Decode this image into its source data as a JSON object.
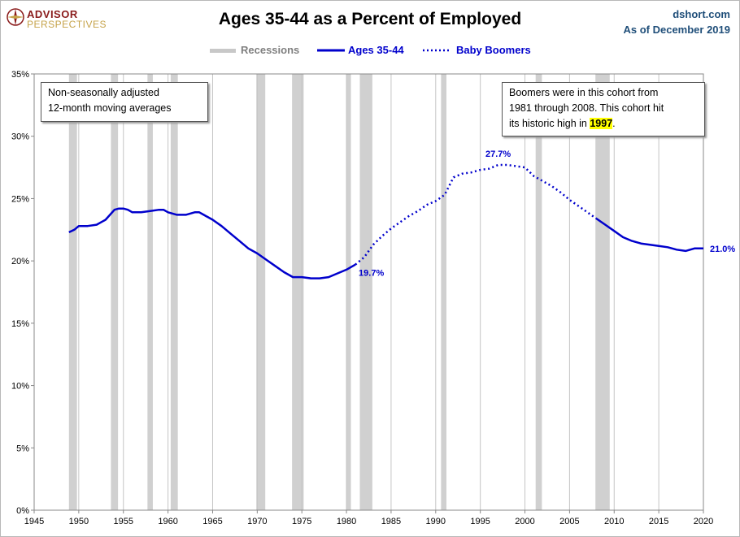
{
  "header": {
    "title": "Ages 35-44 as a Percent of Employed",
    "logo_top": "ADVISOR",
    "logo_bottom": "PERSPECTIVES",
    "source_site": "dshort.com",
    "source_date": "As of December 2019"
  },
  "notes": {
    "left_line1": "Non-seasonally adjusted",
    "left_line2": "12-month moving averages",
    "right_line1": "Boomers were in this cohort from",
    "right_line2": "1981  through 2008.  This cohort hit",
    "right_line3_pre": "its historic high in ",
    "right_line3_year": "1997",
    "right_line3_post": "."
  },
  "chart_data": {
    "type": "line",
    "title": "Ages 35-44 as a Percent of Employed",
    "xlabel": "",
    "ylabel": "",
    "xlim": [
      1945,
      2020
    ],
    "ylim": [
      0,
      35
    ],
    "x_ticks": [
      "1945",
      "1950",
      "1955",
      "1960",
      "1965",
      "1970",
      "1975",
      "1980",
      "1985",
      "1990",
      "1995",
      "2000",
      "2005",
      "2010",
      "2015",
      "2020"
    ],
    "y_ticks": [
      "0%",
      "5%",
      "10%",
      "15%",
      "20%",
      "25%",
      "30%",
      "35%"
    ],
    "grid": "vertical",
    "legend": {
      "position": "top",
      "items": [
        {
          "label": "Recessions",
          "color": "#c8c8c8",
          "style": "band"
        },
        {
          "label": "Ages 35-44",
          "color": "#0000cc",
          "style": "solid"
        },
        {
          "label": "Baby Boomers",
          "color": "#0000cc",
          "style": "dotted"
        }
      ]
    },
    "recessions": [
      [
        1948.9,
        1949.8
      ],
      [
        1953.6,
        1954.4
      ],
      [
        1957.7,
        1958.3
      ],
      [
        1960.3,
        1961.1
      ],
      [
        1969.9,
        1970.9
      ],
      [
        1973.9,
        1975.2
      ],
      [
        1980.0,
        1980.5
      ],
      [
        1981.5,
        1982.9
      ],
      [
        1990.6,
        1991.2
      ],
      [
        2001.2,
        2001.9
      ],
      [
        2007.9,
        2009.5
      ]
    ],
    "series": [
      {
        "name": "Ages 35-44",
        "style": "solid",
        "color": "#0000cc",
        "x": [
          1948.9,
          1949.5,
          1950,
          1951,
          1952,
          1953,
          1954,
          1954.5,
          1955,
          1955.5,
          1956,
          1957,
          1958,
          1959,
          1959.5,
          1960,
          1961,
          1962,
          1963,
          1963.5,
          1964,
          1965,
          1966,
          1967,
          1968,
          1969,
          1970,
          1971,
          1972,
          1973,
          1974,
          1975,
          1976,
          1977,
          1978,
          1979,
          1980,
          1981
        ],
        "y": [
          22.3,
          22.5,
          22.8,
          22.8,
          22.9,
          23.3,
          24.1,
          24.2,
          24.2,
          24.1,
          23.9,
          23.9,
          24.0,
          24.1,
          24.1,
          23.9,
          23.7,
          23.7,
          23.9,
          23.9,
          23.7,
          23.3,
          22.8,
          22.2,
          21.6,
          21.0,
          20.6,
          20.1,
          19.6,
          19.1,
          18.7,
          18.7,
          18.6,
          18.6,
          18.7,
          19.0,
          19.3,
          19.7
        ]
      },
      {
        "name": "Baby Boomers",
        "style": "dotted",
        "color": "#0000cc",
        "x": [
          1981,
          1982,
          1983,
          1984,
          1985,
          1986,
          1987,
          1988,
          1989,
          1990,
          1991,
          1992,
          1993,
          1994,
          1995,
          1996,
          1997,
          1998,
          1999,
          2000,
          2001,
          2002,
          2003,
          2004,
          2005,
          2006,
          2007,
          2008
        ],
        "y": [
          19.7,
          20.3,
          21.3,
          22.0,
          22.6,
          23.1,
          23.6,
          24.0,
          24.5,
          24.8,
          25.3,
          26.7,
          27.0,
          27.1,
          27.3,
          27.4,
          27.7,
          27.7,
          27.6,
          27.5,
          26.8,
          26.4,
          26.0,
          25.5,
          24.9,
          24.4,
          23.9,
          23.4
        ]
      },
      {
        "name": "Ages 35-44",
        "style": "solid",
        "color": "#0000cc",
        "x": [
          2008,
          2009,
          2010,
          2011,
          2012,
          2013,
          2014,
          2015,
          2016,
          2017,
          2018,
          2019,
          2020
        ],
        "y": [
          23.4,
          22.9,
          22.4,
          21.9,
          21.6,
          21.4,
          21.3,
          21.2,
          21.1,
          20.9,
          20.8,
          21.0,
          21.0
        ]
      }
    ],
    "annotations": [
      {
        "text": "19.7%",
        "x": 1981,
        "y": 19.7,
        "anchor": "below-right"
      },
      {
        "text": "27.7%",
        "x": 1997,
        "y": 27.7,
        "anchor": "above"
      },
      {
        "text": "21.0%",
        "x": 2020,
        "y": 21.0,
        "anchor": "right"
      }
    ]
  }
}
